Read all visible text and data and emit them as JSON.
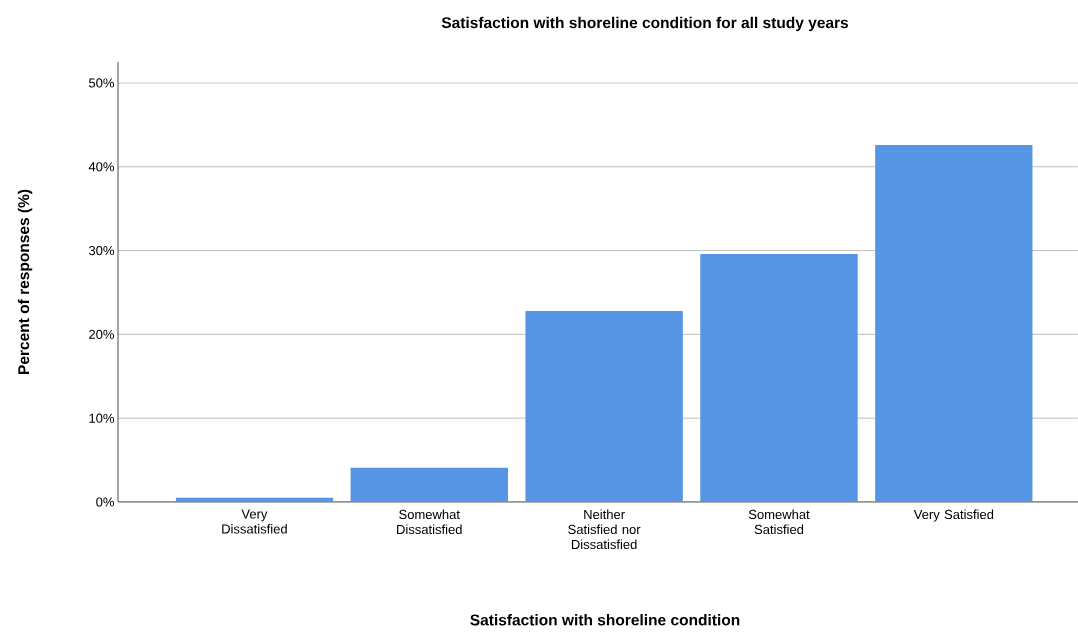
{
  "chart_data": {
    "type": "bar",
    "title": "Satisfaction with shoreline condition for all study years",
    "xlabel": "Satisfaction with shoreline condition",
    "ylabel": "Percent of responses (%)",
    "categories": [
      "Very Dissatisfied",
      "Somewhat Dissatisfied",
      "Neither Satisfied nor Dissatisfied",
      "Somewhat Satisfied",
      "Very Satisfied"
    ],
    "values": [
      0.5,
      4.1,
      22.8,
      29.6,
      42.6
    ],
    "color": "#5595e3",
    "ylim": [
      0,
      52.5
    ],
    "yticks": [
      {
        "value": 0,
        "label": "0%"
      },
      {
        "value": 10,
        "label": "10%"
      },
      {
        "value": 20,
        "label": "20%"
      },
      {
        "value": 30,
        "label": "30%"
      },
      {
        "value": 40,
        "label": "40%"
      },
      {
        "value": 50,
        "label": "50%"
      }
    ],
    "grid": "y"
  }
}
